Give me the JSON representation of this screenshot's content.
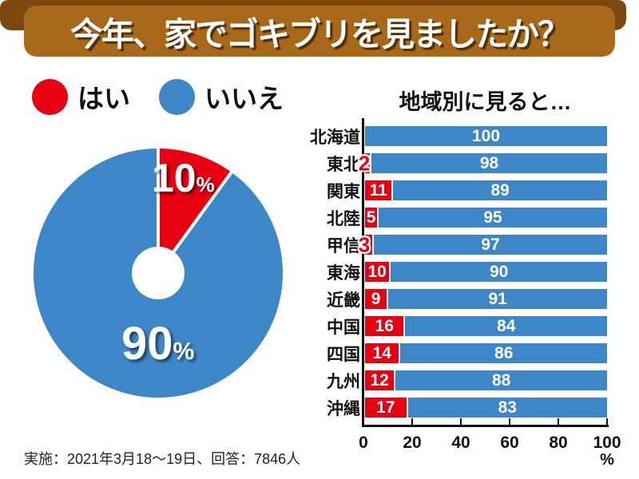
{
  "header": {
    "title": "今年、家でゴキブリを見ましたか？"
  },
  "legend": {
    "items": [
      {
        "label": "はい",
        "color": "#e60012"
      },
      {
        "label": "いいえ",
        "color": "#3d87c8"
      }
    ]
  },
  "chart_data": [
    {
      "type": "pie",
      "style": "donut",
      "unit": "%",
      "slices": [
        {
          "label": "はい",
          "value": 10,
          "color": "#e60012"
        },
        {
          "label": "いいえ",
          "value": 90,
          "color": "#3d87c8"
        }
      ]
    },
    {
      "type": "bar",
      "orientation": "horizontal",
      "stacked": true,
      "title": "地域別に見ると…",
      "categories": [
        "北海道",
        "東北",
        "関東",
        "北陸",
        "甲信",
        "東海",
        "近畿",
        "中国",
        "四国",
        "九州",
        "沖縄"
      ],
      "series": [
        {
          "name": "はい",
          "color": "#e60012",
          "values": [
            0,
            2,
            11,
            5,
            3,
            10,
            9,
            16,
            14,
            12,
            17
          ]
        },
        {
          "name": "いいえ",
          "color": "#3d87c8",
          "values": [
            100,
            98,
            89,
            95,
            97,
            90,
            91,
            84,
            86,
            88,
            83
          ]
        }
      ],
      "xlim": [
        0,
        100
      ],
      "xticks": [
        0,
        20,
        40,
        60,
        80,
        100
      ],
      "xunit": "%",
      "grid": false
    }
  ],
  "footer": {
    "note": "実施：2021年3月18〜19日、回答：7846人"
  }
}
